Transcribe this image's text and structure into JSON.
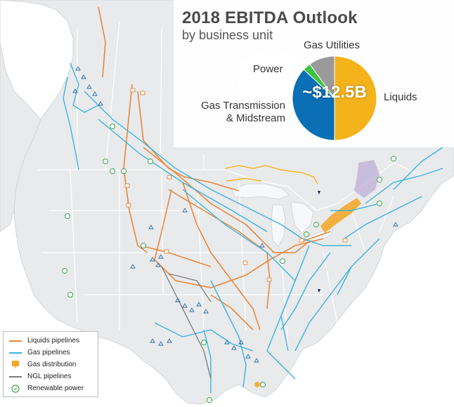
{
  "panel": {
    "title": "2018 EBITDA Outlook",
    "subtitle": "by business unit",
    "total": "~$12.5B",
    "slices": [
      {
        "label": "Liquids",
        "share": 0.5,
        "color": "#f5b31b"
      },
      {
        "label": "Gas Transmission\n& Midstream",
        "share": 0.37,
        "color": "#0a6fb4"
      },
      {
        "label": "Power",
        "share": 0.03,
        "color": "#3cc43c"
      },
      {
        "label": "Gas Utilities",
        "share": 0.1,
        "color": "#9a9a9a"
      }
    ]
  },
  "legend": {
    "items": [
      {
        "label": "Liquids pipelines",
        "icon": "orange-line",
        "color": "#e8873a"
      },
      {
        "label": "Gas pipelines",
        "icon": "blue-line",
        "color": "#3bb4e0"
      },
      {
        "label": "Gas distribution",
        "icon": "orange-area-marker",
        "color": "#f5a623"
      },
      {
        "label": "NGL pipelines",
        "icon": "gray-line",
        "color": "#7a7a7a"
      },
      {
        "label": "Renewable power",
        "icon": "green-leaf-circle",
        "color": "#3aa64a"
      }
    ]
  },
  "map_colors": {
    "land": "#e9eaec",
    "water": "#f7f8fa",
    "border": "#ffffff",
    "liquids": "#e8873a",
    "gas": "#3bb4e0",
    "distribution": "#f5a623",
    "ngl": "#7a7a7a",
    "renewable": "#3aa64a",
    "facility": "#2a6fa6",
    "nodes": "#1d1f5e",
    "purple_zone": "#b9a9d6"
  }
}
